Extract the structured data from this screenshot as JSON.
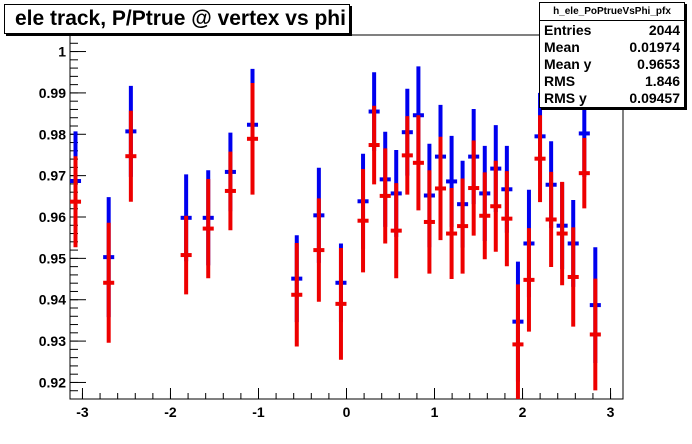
{
  "chart_data": {
    "type": "scatter",
    "title": "ele track, P/Ptrue @ vertex vs phi",
    "xlim": [
      -3.14159,
      3.14159
    ],
    "ylim": [
      0.916,
      1.004
    ],
    "x_ticks": [
      "-3",
      "-2",
      "-1",
      "0",
      "1",
      "2",
      "3"
    ],
    "y_ticks": [
      "0.92",
      "0.93",
      "0.94",
      "0.95",
      "0.96",
      "0.97",
      "0.98",
      "0.99",
      "1"
    ],
    "grid": false,
    "stats": {
      "name": "h_ele_PoPtrueVsPhi_pfx",
      "rows": [
        {
          "label": "Entries",
          "value": "2044"
        },
        {
          "label": "Mean",
          "value": "0.01974"
        },
        {
          "label": "Mean y",
          "value": "0.9653"
        },
        {
          "label": "RMS",
          "value": "1.846"
        },
        {
          "label": "RMS y",
          "value": "0.09457"
        }
      ]
    },
    "x": [
      -3.079,
      -2.953,
      -2.827,
      -2.702,
      -2.576,
      -2.45,
      -2.325,
      -2.199,
      -2.073,
      -1.948,
      -1.822,
      -1.696,
      -1.571,
      -1.445,
      -1.319,
      -1.194,
      -1.068,
      -0.942,
      -0.817,
      -0.691,
      -0.565,
      -0.44,
      -0.314,
      -0.188,
      -0.063,
      0.063,
      0.188,
      0.314,
      0.44,
      0.565,
      0.691,
      0.817,
      0.942,
      1.068,
      1.194,
      1.319,
      1.445,
      1.571,
      1.696,
      1.822,
      1.948,
      2.073,
      2.199,
      2.325,
      2.45,
      2.576,
      2.702,
      2.827,
      2.953,
      3.079
    ],
    "series": [
      {
        "color": "#0000ee",
        "values": [
          0.9687,
          0.9503,
          0.9807,
          0.9598,
          0.9598,
          0.9709,
          0.9823,
          0.9451,
          0.9604,
          0.9441,
          0.9638,
          0.9855,
          0.9691,
          0.9657,
          0.9805,
          0.9846,
          0.9652,
          0.9746,
          0.9686,
          0.9631,
          0.9746,
          0.9657,
          0.9717,
          0.9667,
          0.9347,
          0.9536,
          0.9795,
          0.9678,
          0.9579,
          0.9536,
          0.9802,
          0.9387
        ],
        "x_index": [
          0,
          3,
          5,
          10,
          12,
          14,
          16,
          20,
          22,
          24,
          26,
          27,
          28,
          29,
          30,
          31,
          32,
          33,
          34,
          35,
          36,
          37,
          38,
          39,
          40,
          41,
          42,
          43,
          44,
          45,
          46,
          47
        ],
        "errors": [
          0.012,
          0.0145,
          0.011,
          0.0105,
          0.0115,
          0.0095,
          0.0135,
          0.0105,
          0.0115,
          0.0095,
          0.0115,
          0.0095,
          0.0115,
          0.0105,
          0.0105,
          0.0118,
          0.0125,
          0.0125,
          0.011,
          0.0105,
          0.0115,
          0.0115,
          0.0105,
          0.0105,
          0.0145,
          0.013,
          0.0105,
          0.0105,
          0.0105,
          0.0105,
          0.0105,
          0.014
        ]
      },
      {
        "color": "#ee0000",
        "values": [
          0.9637,
          0.9441,
          0.9747,
          0.9508,
          0.9572,
          0.9663,
          0.9789,
          0.9412,
          0.952,
          0.939,
          0.9591,
          0.9774,
          0.9651,
          0.9567,
          0.9749,
          0.9731,
          0.9588,
          0.9669,
          0.956,
          0.9578,
          0.967,
          0.9603,
          0.9626,
          0.9596,
          0.9292,
          0.9448,
          0.9741,
          0.9594,
          0.956,
          0.9455,
          0.9706,
          0.9316
        ],
        "x_index": [
          0,
          3,
          5,
          10,
          12,
          14,
          16,
          20,
          22,
          24,
          26,
          27,
          28,
          29,
          30,
          31,
          32,
          33,
          34,
          35,
          36,
          37,
          38,
          39,
          40,
          41,
          42,
          43,
          44,
          45,
          46,
          47
        ],
        "errors": [
          0.011,
          0.0145,
          0.011,
          0.0095,
          0.012,
          0.0095,
          0.0135,
          0.0125,
          0.0125,
          0.0135,
          0.0125,
          0.0095,
          0.0115,
          0.0115,
          0.0095,
          0.0115,
          0.0125,
          0.0125,
          0.011,
          0.0115,
          0.0115,
          0.0105,
          0.011,
          0.0115,
          0.0145,
          0.0125,
          0.0105,
          0.0115,
          0.0125,
          0.012,
          0.0085,
          0.0135
        ]
      }
    ]
  }
}
